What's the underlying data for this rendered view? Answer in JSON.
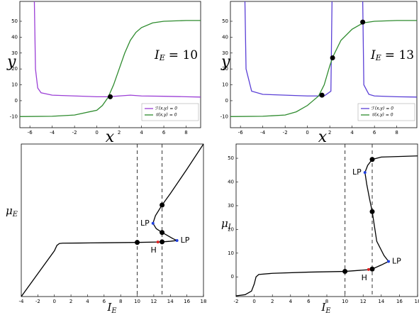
{
  "chart_data": [
    {
      "type": "line",
      "xlim": [
        -6.9,
        9.3
      ],
      "ylim": [
        -17,
        62.5
      ],
      "xticks": [
        -6,
        -4,
        -2,
        0,
        2,
        4,
        6,
        8
      ],
      "yticks": [
        -10,
        0,
        10,
        20,
        30,
        40,
        50
      ],
      "xlabel": {
        "text": "x"
      },
      "ylabel": {
        "text": "y"
      },
      "annotation": {
        "text": "I",
        "sub": "E",
        "rest": "= 10"
      },
      "legend": "lower right",
      "series": [
        {
          "name": "ℱ(x,y) = 0",
          "color": "#9b3fd6",
          "x": [
            -5.6,
            -5.5,
            -5.3,
            -5,
            -4,
            -2,
            0,
            1,
            2,
            3,
            4,
            6,
            8,
            9.3
          ],
          "values": [
            62.5,
            20,
            8,
            5,
            3.5,
            3,
            2.5,
            2.5,
            3,
            3.5,
            3,
            2.8,
            2.5,
            2.3
          ]
        },
        {
          "name": "𝒢(x,y) = 0",
          "color": "#2e8b2e",
          "x": [
            -6.9,
            -4,
            -2,
            0,
            0.5,
            1,
            1.5,
            2,
            2.5,
            3,
            3.5,
            4,
            5,
            6,
            8,
            9.3
          ],
          "values": [
            -10,
            -9.8,
            -9,
            -6,
            -3,
            2,
            10,
            20,
            30,
            38,
            43,
            46,
            49,
            50,
            50.5,
            50.5
          ]
        }
      ],
      "markers": [
        {
          "x": 1.2,
          "y": 2.5,
          "color": "#000000"
        }
      ]
    },
    {
      "type": "line",
      "xlim": [
        -6.9,
        9.8
      ],
      "ylim": [
        -17,
        62.5
      ],
      "xticks": [
        -6,
        -4,
        -2,
        0,
        2,
        4,
        6,
        8
      ],
      "yticks": [
        -10,
        0,
        10,
        20,
        30,
        40,
        50
      ],
      "xlabel": {
        "text": "x"
      },
      "ylabel": {
        "text": "y"
      },
      "annotation": {
        "text": "I",
        "sub": "E",
        "rest": "= 13"
      },
      "legend": "lower right",
      "series": [
        {
          "name": "ℱ(x,y) = 0",
          "color": "#5a3fd6",
          "x": [
            -5.6,
            -5.5,
            -5,
            -4,
            -2,
            0,
            1.5,
            2.1,
            2.2,
            null,
            4.95,
            5.05,
            5.5,
            6,
            8,
            9.8
          ],
          "values": [
            62.5,
            20,
            6,
            4,
            3.5,
            3,
            3,
            6,
            62.5,
            null,
            62.5,
            10,
            4,
            3,
            2.5,
            2.3
          ]
        },
        {
          "name": "𝒢(x,y) = 0",
          "color": "#2e8b2e",
          "x": [
            -6.9,
            -4,
            -2,
            -1,
            0,
            0.5,
            1,
            1.5,
            2,
            2.3,
            3,
            4,
            5,
            6,
            8,
            9.8
          ],
          "values": [
            -10,
            -9.8,
            -9,
            -7,
            -3,
            0,
            3,
            10,
            22,
            28,
            38,
            45,
            49,
            50,
            50.5,
            50.5
          ]
        }
      ],
      "markers": [
        {
          "x": 1.3,
          "y": 3.5,
          "color": "#000000"
        },
        {
          "x": 2.25,
          "y": 27,
          "color": "#000000"
        },
        {
          "x": 4.95,
          "y": 49.5,
          "color": "#000000"
        }
      ]
    },
    {
      "type": "line",
      "xlim": [
        -4,
        18
      ],
      "ylim": [
        -4,
        16
      ],
      "xticks": [
        -4,
        -2,
        0,
        2,
        4,
        6,
        8,
        10,
        12,
        14,
        16,
        18
      ],
      "xlabel": {
        "text": "I",
        "sub": "E"
      },
      "ylabel": {
        "text": "μ",
        "sub": "E"
      },
      "vlines": [
        10,
        13
      ],
      "series": [
        {
          "color": "#000000",
          "x": [
            -4,
            -2,
            0,
            0.3,
            0.6,
            1,
            3,
            6,
            10,
            12.5,
            13,
            14,
            14.8,
            14.3,
            13.5,
            13,
            12.3,
            11.9,
            12.2,
            13,
            14,
            16,
            18
          ],
          "values": [
            -4,
            -1,
            2,
            2.7,
            2.95,
            3,
            3.02,
            3.05,
            3.1,
            3.15,
            3.17,
            3.25,
            3.35,
            3.6,
            4.1,
            4.4,
            4.9,
            5.6,
            6.6,
            8,
            9.5,
            12.7,
            16
          ]
        }
      ],
      "markers": [
        {
          "x": 10,
          "y": 3.1,
          "color": "#000000"
        },
        {
          "x": 13,
          "y": 3.17,
          "color": "#000000"
        },
        {
          "x": 13,
          "y": 4.4,
          "color": "#000000"
        },
        {
          "x": 13,
          "y": 8,
          "color": "#000000"
        },
        {
          "x": 12.5,
          "y": 3.15,
          "color": "#e02020",
          "label": "H"
        },
        {
          "x": 14.8,
          "y": 3.35,
          "color": "#2040e0",
          "label": "LP"
        },
        {
          "x": 11.9,
          "y": 5.6,
          "color": "#2040e0",
          "label": "LP"
        }
      ]
    },
    {
      "type": "line",
      "xlim": [
        -2,
        18
      ],
      "ylim": [
        -8.3,
        56
      ],
      "xticks": [
        -2,
        0,
        2,
        4,
        6,
        8,
        10,
        12,
        14,
        16,
        18
      ],
      "yticks": [
        0,
        10,
        20,
        30,
        40,
        50
      ],
      "xlabel": {
        "text": "I",
        "sub": "E"
      },
      "ylabel": {
        "text": "μ",
        "sub": "I"
      },
      "vlines": [
        10,
        13
      ],
      "series": [
        {
          "color": "#000000",
          "x": [
            -2,
            -1,
            -0.3,
            0,
            0.2,
            0.5,
            2,
            6,
            10,
            12.5,
            13,
            14,
            14.8,
            14.3,
            13.5,
            13,
            12.7,
            12.4,
            12.2,
            12.5,
            13,
            14,
            18
          ],
          "values": [
            -8,
            -7.5,
            -6,
            -3,
            0,
            1,
            1.5,
            2,
            2.3,
            3,
            3.3,
            5,
            6.5,
            9,
            15,
            27.5,
            33,
            39,
            44,
            47,
            49.5,
            50.5,
            51
          ]
        }
      ],
      "markers": [
        {
          "x": 10,
          "y": 2.3,
          "color": "#000000"
        },
        {
          "x": 13,
          "y": 3.3,
          "color": "#000000"
        },
        {
          "x": 13,
          "y": 27.5,
          "color": "#000000"
        },
        {
          "x": 13,
          "y": 49.5,
          "color": "#000000"
        },
        {
          "x": 12.6,
          "y": 3.1,
          "color": "#e02020",
          "label": "H"
        },
        {
          "x": 14.8,
          "y": 6.5,
          "color": "#2040e0",
          "label": "LP"
        },
        {
          "x": 12.2,
          "y": 44,
          "color": "#2040e0",
          "label": "LP"
        }
      ]
    }
  ]
}
